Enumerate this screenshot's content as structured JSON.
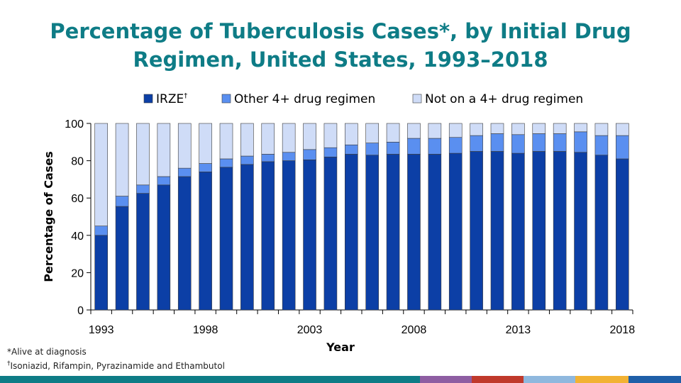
{
  "title_line1": "Percentage of Tuberculosis Cases*, by Initial Drug",
  "title_line2": "Regimen, United States, 1993–2018",
  "footnotes": {
    "line1": "*Alive at diagnosis",
    "line2_mark": "†",
    "line2_text": "Isoniazid, Rifampin, Pyrazinamide and Ethambutol"
  },
  "bottom_bar_colors": [
    "#0e7c86",
    "#8e5ea2",
    "#c0392b",
    "#8fb8de",
    "#f2b233",
    "#1f5fa8"
  ],
  "chart_data": {
    "type": "bar",
    "stacked": true,
    "title": "Percentage of Tuberculosis Cases*, by Initial Drug Regimen, United States, 1993–2018",
    "xlabel": "Year",
    "ylabel": "Percentage of Cases",
    "ylim": [
      0,
      100
    ],
    "yticks": [
      0,
      20,
      40,
      60,
      80,
      100
    ],
    "xtick_labels": [
      "1993",
      "1998",
      "2003",
      "2008",
      "2013",
      "2018"
    ],
    "categories": [
      "1993",
      "1994",
      "1995",
      "1996",
      "1997",
      "1998",
      "1999",
      "2000",
      "2001",
      "2002",
      "2003",
      "2004",
      "2005",
      "2006",
      "2007",
      "2008",
      "2009",
      "2010",
      "2011",
      "2012",
      "2013",
      "2014",
      "2015",
      "2016",
      "2017",
      "2018"
    ],
    "legend_position": "top",
    "series": [
      {
        "name": "IRZE",
        "name_mark": "†",
        "color": "#0c3fa6",
        "values": [
          40,
          55.5,
          62.5,
          67,
          71.5,
          74,
          76.5,
          78,
          79.5,
          80,
          80.5,
          82,
          83.5,
          83,
          83.5,
          83.5,
          83.5,
          84,
          85,
          85,
          84,
          85,
          85,
          84.5,
          83,
          81
        ]
      },
      {
        "name": "Other 4+ drug regimen",
        "color": "#5a8ff0",
        "values": [
          5,
          5.5,
          4.5,
          4.5,
          4.5,
          4.5,
          4.5,
          4.5,
          4,
          4.5,
          5.5,
          5,
          5,
          6.5,
          6.5,
          8.5,
          8.5,
          8.5,
          8.5,
          9.5,
          10,
          9.5,
          9.5,
          11,
          10.5,
          12.5
        ]
      },
      {
        "name": "Not on a 4+ drug regimen",
        "color": "#cfdcf7",
        "values": [
          55,
          39,
          33,
          28.5,
          24,
          21.5,
          19,
          17.5,
          16.5,
          15.5,
          14,
          13,
          11.5,
          10.5,
          10,
          8,
          8,
          7.5,
          6.5,
          5.5,
          6,
          5.5,
          5.5,
          4.5,
          6.5,
          6.5
        ]
      }
    ]
  }
}
